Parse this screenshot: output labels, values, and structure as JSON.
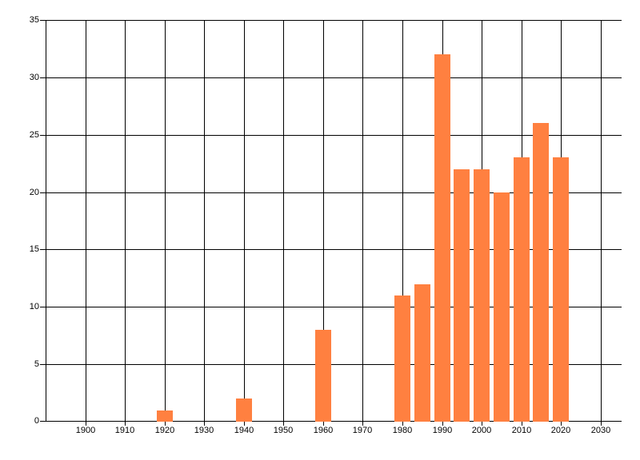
{
  "chart_data": {
    "type": "bar",
    "title": "",
    "subtitle": "",
    "xlabel": "",
    "ylabel": "",
    "x": [
      1920,
      1940,
      1960,
      1980,
      1985,
      1990,
      1995,
      2000,
      2005,
      2010,
      2015,
      2020
    ],
    "values": [
      1,
      2,
      8,
      11,
      12,
      32,
      22,
      22,
      20,
      23,
      26,
      23
    ],
    "xlim": [
      1890,
      2035.3
    ],
    "ylim": [
      0,
      35
    ],
    "x_ticks": [
      1900,
      1910,
      1920,
      1930,
      1940,
      1950,
      1960,
      1970,
      1980,
      1990,
      2000,
      2010,
      2020,
      2030
    ],
    "y_ticks": [
      0,
      5,
      10,
      15,
      20,
      25,
      30,
      35
    ],
    "grid": true,
    "legend": false,
    "bar_color": "#FF8040",
    "axis_color": "#000000",
    "label_color": "#000000",
    "background_color": "#FFFFFF"
  }
}
